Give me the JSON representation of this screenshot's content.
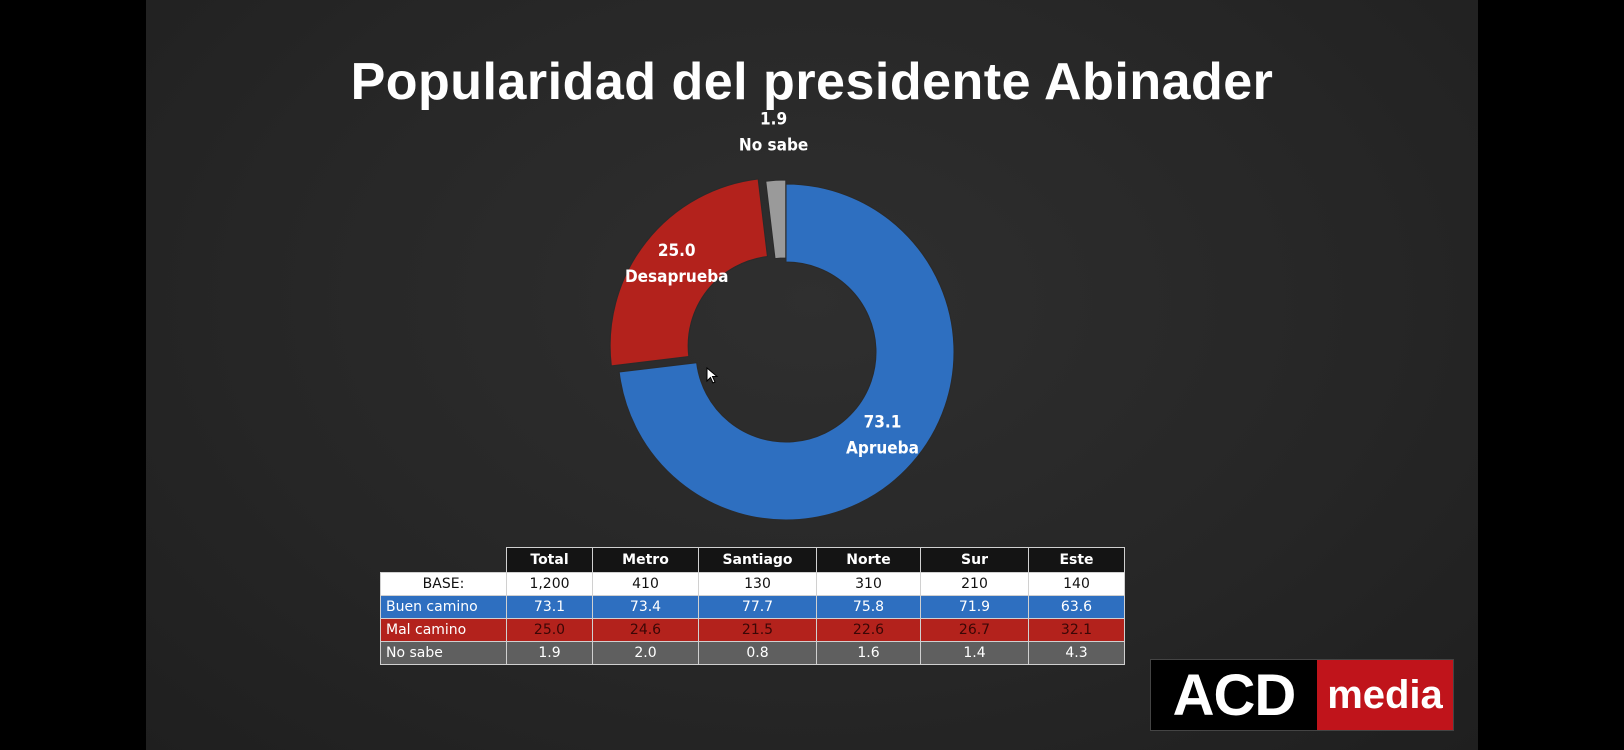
{
  "title": "Popularidad del presidente Abinader",
  "chart_data": [
    {
      "type": "pie",
      "title": "Popularidad del presidente Abinader",
      "slices": [
        {
          "label": "Aprueba",
          "value": 73.1,
          "value_label": "73.1",
          "color": "#2e6fc0"
        },
        {
          "label": "Desaprueba",
          "value": 25.0,
          "value_label": "25.0",
          "color": "#b3221c"
        },
        {
          "label": "No sabe",
          "value": 1.9,
          "value_label": "1.9",
          "color": "#9a9a9a"
        }
      ]
    },
    {
      "type": "table",
      "columns": [
        "Total",
        "Metro",
        "Santiago",
        "Norte",
        "Sur",
        "Este"
      ],
      "base": {
        "label": "BASE:",
        "values": [
          "1,200",
          "410",
          "130",
          "310",
          "210",
          "140"
        ]
      },
      "rows": [
        {
          "label": "Buen camino",
          "values": [
            "73.1",
            "73.4",
            "77.7",
            "75.8",
            "71.9",
            "63.6"
          ],
          "color": "#2e6fc0"
        },
        {
          "label": "Mal camino",
          "values": [
            "25.0",
            "24.6",
            "21.5",
            "22.6",
            "26.7",
            "32.1"
          ],
          "color": "#b3221c"
        },
        {
          "label": "No sabe",
          "values": [
            "1.9",
            "2.0",
            "0.8",
            "1.6",
            "1.4",
            "4.3"
          ],
          "color": "#5f5f5f"
        }
      ]
    }
  ],
  "logo": {
    "part1": "ACD",
    "part2": "media"
  },
  "icons": {
    "cursor": "mouse-pointer-icon"
  }
}
